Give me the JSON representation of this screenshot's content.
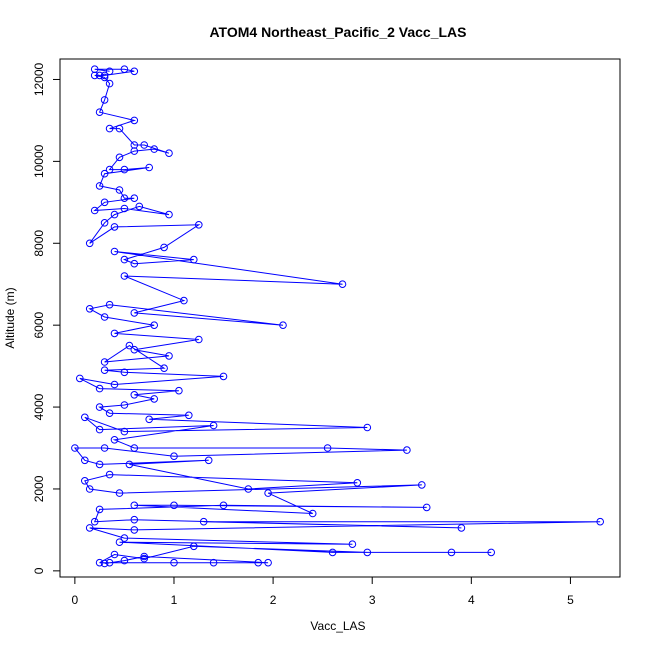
{
  "chart_data": {
    "type": "line",
    "title": "ATOM4 Northeast_Pacific_2 Vacc_LAS",
    "xlabel": "Vacc_LAS",
    "ylabel": "Altitude (m)",
    "xlim": [
      -0.15,
      5.5
    ],
    "ylim": [
      -150,
      12500
    ],
    "xticks": [
      0,
      1,
      2,
      3,
      4,
      5
    ],
    "yticks": [
      0,
      2000,
      4000,
      6000,
      8000,
      10000,
      12000
    ],
    "grid": false,
    "series": [
      {
        "color": "#0000ff",
        "marker": "open-circle",
        "points": [
          [
            0.35,
            12200
          ],
          [
            0.2,
            12250
          ],
          [
            0.5,
            12250
          ],
          [
            0.6,
            12200
          ],
          [
            0.3,
            12100
          ],
          [
            0.25,
            12100
          ],
          [
            0.2,
            12100
          ],
          [
            0.3,
            12050
          ],
          [
            0.35,
            11900
          ],
          [
            0.3,
            11500
          ],
          [
            0.25,
            11200
          ],
          [
            0.6,
            11000
          ],
          [
            0.35,
            10800
          ],
          [
            0.45,
            10800
          ],
          [
            0.6,
            10400
          ],
          [
            0.7,
            10400
          ],
          [
            0.95,
            10200
          ],
          [
            0.8,
            10300
          ],
          [
            0.6,
            10250
          ],
          [
            0.45,
            10100
          ],
          [
            0.35,
            9800
          ],
          [
            0.5,
            9800
          ],
          [
            0.75,
            9850
          ],
          [
            0.3,
            9700
          ],
          [
            0.25,
            9400
          ],
          [
            0.45,
            9300
          ],
          [
            0.5,
            9100
          ],
          [
            0.6,
            9100
          ],
          [
            0.3,
            9000
          ],
          [
            0.2,
            8800
          ],
          [
            0.5,
            8850
          ],
          [
            0.95,
            8700
          ],
          [
            0.65,
            8900
          ],
          [
            0.4,
            8700
          ],
          [
            0.3,
            8500
          ],
          [
            0.15,
            8000
          ],
          [
            0.4,
            8400
          ],
          [
            1.25,
            8450
          ],
          [
            0.9,
            7900
          ],
          [
            0.5,
            7600
          ],
          [
            0.6,
            7500
          ],
          [
            1.2,
            7600
          ],
          [
            0.4,
            7800
          ],
          [
            2.7,
            7000
          ],
          [
            0.5,
            7200
          ],
          [
            1.1,
            6600
          ],
          [
            0.6,
            6300
          ],
          [
            2.1,
            6000
          ],
          [
            0.35,
            6500
          ],
          [
            0.15,
            6400
          ],
          [
            0.3,
            6200
          ],
          [
            0.8,
            6000
          ],
          [
            0.4,
            5800
          ],
          [
            1.25,
            5650
          ],
          [
            0.6,
            5400
          ],
          [
            0.95,
            5250
          ],
          [
            0.3,
            5100
          ],
          [
            0.55,
            5500
          ],
          [
            0.9,
            4950
          ],
          [
            0.3,
            4900
          ],
          [
            0.5,
            4850
          ],
          [
            1.5,
            4750
          ],
          [
            0.4,
            4550
          ],
          [
            0.05,
            4700
          ],
          [
            0.25,
            4450
          ],
          [
            1.05,
            4400
          ],
          [
            0.6,
            4300
          ],
          [
            0.8,
            4200
          ],
          [
            0.5,
            4050
          ],
          [
            0.25,
            4000
          ],
          [
            0.35,
            3850
          ],
          [
            1.15,
            3800
          ],
          [
            0.75,
            3700
          ],
          [
            2.95,
            3500
          ],
          [
            0.5,
            3400
          ],
          [
            0.1,
            3750
          ],
          [
            0.25,
            3450
          ],
          [
            1.4,
            3550
          ],
          [
            0.4,
            3200
          ],
          [
            0.6,
            3000
          ],
          [
            2.55,
            3000
          ],
          [
            3.35,
            2950
          ],
          [
            1.0,
            2800
          ],
          [
            0.3,
            3000
          ],
          [
            0.0,
            3000
          ],
          [
            0.1,
            2700
          ],
          [
            0.25,
            2600
          ],
          [
            1.35,
            2700
          ],
          [
            0.55,
            2600
          ],
          [
            1.75,
            2000
          ],
          [
            2.85,
            2150
          ],
          [
            0.35,
            2350
          ],
          [
            0.1,
            2200
          ],
          [
            0.15,
            2000
          ],
          [
            0.45,
            1900
          ],
          [
            3.5,
            2100
          ],
          [
            1.95,
            1900
          ],
          [
            2.4,
            1400
          ],
          [
            0.6,
            1600
          ],
          [
            1.0,
            1600
          ],
          [
            3.55,
            1550
          ],
          [
            1.5,
            1600
          ],
          [
            0.25,
            1500
          ],
          [
            0.2,
            1200
          ],
          [
            0.6,
            1250
          ],
          [
            3.9,
            1050
          ],
          [
            1.3,
            1200
          ],
          [
            5.3,
            1200
          ],
          [
            0.6,
            1000
          ],
          [
            0.15,
            1050
          ],
          [
            0.5,
            800
          ],
          [
            2.8,
            650
          ],
          [
            0.45,
            700
          ],
          [
            2.6,
            450
          ],
          [
            4.2,
            450
          ],
          [
            3.8,
            450
          ],
          [
            2.95,
            450
          ],
          [
            1.2,
            600
          ],
          [
            0.7,
            300
          ],
          [
            0.4,
            400
          ],
          [
            0.25,
            200
          ],
          [
            0.35,
            200
          ],
          [
            1.0,
            200
          ],
          [
            1.4,
            200
          ],
          [
            1.85,
            200
          ],
          [
            1.95,
            200
          ],
          [
            0.7,
            350
          ],
          [
            0.5,
            250
          ],
          [
            0.3,
            180
          ]
        ]
      }
    ]
  }
}
